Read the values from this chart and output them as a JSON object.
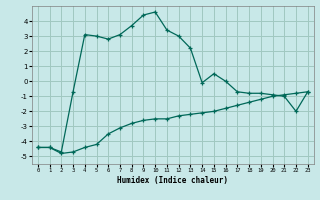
{
  "xlabel": "Humidex (Indice chaleur)",
  "ylabel": "",
  "bg_color": "#c8e8e8",
  "grid_color": "#a0c8c0",
  "line_color": "#006858",
  "xlim": [
    -0.5,
    23.5
  ],
  "ylim": [
    -5.5,
    5.0
  ],
  "yticks": [
    -5,
    -4,
    -3,
    -2,
    -1,
    0,
    1,
    2,
    3,
    4
  ],
  "xticks": [
    0,
    1,
    2,
    3,
    4,
    5,
    6,
    7,
    8,
    9,
    10,
    11,
    12,
    13,
    14,
    15,
    16,
    17,
    18,
    19,
    20,
    21,
    22,
    23
  ],
  "curve1_x": [
    0,
    1,
    2,
    3,
    4,
    5,
    6,
    7,
    8,
    9,
    10,
    11,
    12,
    13,
    14,
    15,
    16,
    17,
    18,
    19,
    20,
    21,
    22,
    23
  ],
  "curve1_y": [
    -4.4,
    -4.4,
    -4.7,
    -0.7,
    3.1,
    3.0,
    2.8,
    3.1,
    3.7,
    4.4,
    4.6,
    3.4,
    3.0,
    2.2,
    -0.1,
    0.5,
    0.0,
    -0.7,
    -0.8,
    -0.8,
    -0.9,
    -1.0,
    -2.0,
    -0.7
  ],
  "curve2_x": [
    0,
    1,
    2,
    3,
    4,
    5,
    6,
    7,
    8,
    9,
    10,
    11,
    12,
    13,
    14,
    15,
    16,
    17,
    18,
    19,
    20,
    21,
    22,
    23
  ],
  "curve2_y": [
    -4.4,
    -4.4,
    -4.8,
    -4.7,
    -4.4,
    -4.2,
    -3.5,
    -3.1,
    -2.8,
    -2.6,
    -2.5,
    -2.5,
    -2.3,
    -2.2,
    -2.1,
    -2.0,
    -1.8,
    -1.6,
    -1.4,
    -1.2,
    -1.0,
    -0.9,
    -0.8,
    -0.7
  ],
  "xlabel_fontsize": 5.5,
  "tick_fontsize_x": 4.0,
  "tick_fontsize_y": 5.0
}
